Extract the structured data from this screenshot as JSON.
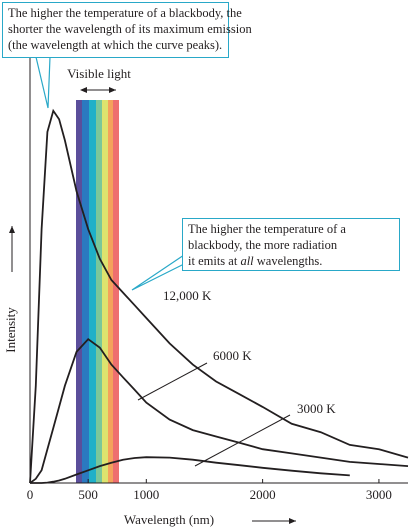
{
  "chart_data": {
    "type": "line",
    "xlabel": "Wavelength (nm)",
    "ylabel": "Intensity",
    "x": [
      0,
      50,
      100,
      150,
      200,
      250,
      300,
      400,
      500,
      600,
      700,
      800,
      900,
      1000,
      1200,
      1400,
      1600,
      1800,
      2000,
      2250,
      2500,
      2750,
      3000,
      3250
    ],
    "xlim": [
      0,
      3250
    ],
    "xticks": [
      0,
      500,
      1000,
      2000,
      3000
    ],
    "ylim": [
      0,
      100
    ],
    "series": [
      {
        "name": "12,000 K",
        "color": "#231f20",
        "values": [
          0,
          23,
          60,
          83,
          88,
          86,
          81,
          69,
          60,
          53,
          48,
          45,
          42,
          39,
          33,
          28,
          24,
          21,
          18,
          14,
          12,
          9,
          8,
          6
        ]
      },
      {
        "name": "6000 K",
        "color": "#231f20",
        "values": [
          0,
          1,
          3,
          8,
          13,
          18,
          23,
          31,
          34,
          32,
          28,
          25,
          22,
          19,
          15,
          12.5,
          11,
          9.5,
          8,
          7,
          6,
          5,
          4.5,
          4
        ]
      },
      {
        "name": "3000 K",
        "color": "#231f20",
        "values": [
          0,
          0,
          0,
          0.1,
          0.3,
          0.6,
          1,
          2,
          3,
          4,
          4.8,
          5.5,
          5.9,
          6.1,
          6,
          5.5,
          4.8,
          4.2,
          3.6,
          2.9,
          2.3,
          1.8,
          null,
          null
        ]
      }
    ],
    "annotations": {
      "visible_light": "Visible light",
      "peak_note": [
        "The higher the temperature of a blackbody, the",
        "shorter the wavelength of its maximum emission",
        "(the wavelength at which the curve peaks)."
      ],
      "radiation_note": [
        "The higher the temperature of a",
        "blackbody, the more radiation",
        [
          "it emits at ",
          "all",
          " wavelengths."
        ]
      ]
    }
  }
}
